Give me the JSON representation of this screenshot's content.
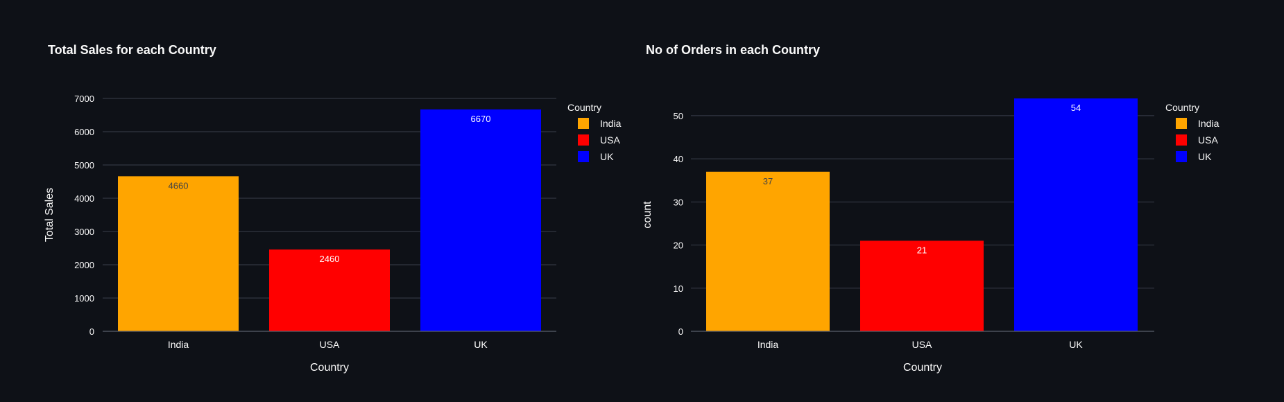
{
  "page": {
    "background": "#0e1117",
    "text_color": "#fafafa",
    "grid_color": "#3a3f4b",
    "axis_color": "#5a5f6b"
  },
  "chart_data": [
    {
      "type": "bar",
      "title": "Total Sales for each Country",
      "xlabel": "Country",
      "ylabel": "Total Sales",
      "categories": [
        "India",
        "USA",
        "UK"
      ],
      "values": [
        4660,
        2460,
        6670
      ],
      "colors": [
        "#ffa500",
        "#ff0000",
        "#0000ff"
      ],
      "data_labels": [
        "4660",
        "2460",
        "6670"
      ],
      "label_colors": [
        "#444444",
        "#ffffff",
        "#ffffff"
      ],
      "ylim": [
        0,
        7000
      ],
      "yticks": [
        0,
        1000,
        2000,
        3000,
        4000,
        5000,
        6000,
        7000
      ],
      "grid": true,
      "legend": {
        "title": "Country",
        "placement": "top-right",
        "entries": [
          "India",
          "USA",
          "UK"
        ]
      }
    },
    {
      "type": "bar",
      "title": "No of Orders in each Country",
      "xlabel": "Country",
      "ylabel": "count",
      "categories": [
        "India",
        "USA",
        "UK"
      ],
      "values": [
        37,
        21,
        54
      ],
      "colors": [
        "#ffa500",
        "#ff0000",
        "#0000ff"
      ],
      "data_labels": [
        "37",
        "21",
        "54"
      ],
      "label_colors": [
        "#444444",
        "#ffffff",
        "#ffffff"
      ],
      "ylim": [
        0,
        54
      ],
      "yticks": [
        0,
        10,
        20,
        30,
        40,
        50
      ],
      "grid": true,
      "legend": {
        "title": "Country",
        "placement": "top-right",
        "entries": [
          "India",
          "USA",
          "UK"
        ]
      }
    }
  ]
}
